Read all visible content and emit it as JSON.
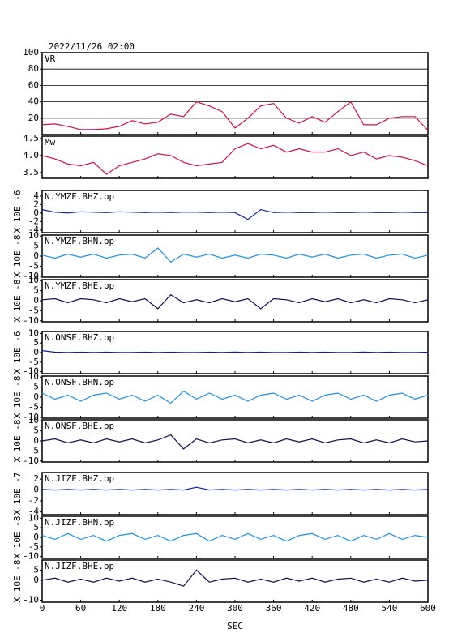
{
  "page_title": "2022/11/26 02:00",
  "chart_data": [
    {
      "type": "line",
      "title": "VR",
      "color": "#d0104a",
      "grid": true,
      "ylim": [
        0,
        100
      ],
      "yticks": [
        20,
        40,
        60,
        80,
        100
      ],
      "x": [
        0,
        20,
        40,
        60,
        80,
        100,
        120,
        140,
        160,
        180,
        200,
        220,
        240,
        260,
        280,
        300,
        320,
        340,
        360,
        380,
        400,
        420,
        440,
        460,
        480,
        500,
        520,
        540,
        560,
        580,
        600
      ],
      "values": [
        12,
        13,
        10,
        6,
        6,
        7,
        10,
        17,
        13,
        15,
        25,
        22,
        40,
        35,
        28,
        8,
        20,
        35,
        38,
        20,
        14,
        22,
        15,
        28,
        40,
        12,
        12,
        20,
        22,
        22,
        5
      ]
    },
    {
      "type": "line",
      "title": "Mw",
      "color": "#d0104a",
      "grid": false,
      "ylim": [
        3.33,
        4.57
      ],
      "yticks": [
        3.5,
        {
          "value": 4,
          "label": "4.0"
        },
        4.5
      ],
      "x": [
        0,
        20,
        40,
        60,
        80,
        100,
        120,
        140,
        160,
        180,
        200,
        220,
        240,
        260,
        280,
        300,
        320,
        340,
        360,
        380,
        400,
        420,
        440,
        460,
        480,
        500,
        520,
        540,
        560,
        580,
        600
      ],
      "values": [
        4.0,
        3.9,
        3.75,
        3.7,
        3.8,
        3.45,
        3.7,
        3.8,
        3.9,
        4.05,
        4.0,
        3.8,
        3.7,
        3.75,
        3.8,
        4.2,
        4.35,
        4.2,
        4.3,
        4.1,
        4.2,
        4.1,
        4.1,
        4.2,
        4.0,
        4.1,
        3.9,
        4.0,
        3.95,
        3.85,
        3.7
      ]
    },
    {
      "type": "line",
      "title": "N.YMZF.BHZ.bp",
      "ylabel": "X 10E -6",
      "color": "#1020a0",
      "grid": false,
      "ylim": [
        -4.6,
        5.3
      ],
      "yticks": [
        -4,
        -2,
        0,
        2,
        4
      ],
      "x": [
        0,
        20,
        40,
        60,
        80,
        100,
        120,
        140,
        160,
        180,
        200,
        220,
        240,
        260,
        280,
        300,
        320,
        340,
        360,
        380,
        400,
        420,
        440,
        460,
        480,
        500,
        520,
        540,
        560,
        580,
        600
      ],
      "values": [
        0.8,
        0.2,
        0,
        0.3,
        0.2,
        0.1,
        0.3,
        0.2,
        0.1,
        0.2,
        0.1,
        0.2,
        0.2,
        0.1,
        0.2,
        0.1,
        -1.5,
        0.8,
        0.1,
        0.2,
        0.1,
        0.1,
        0.2,
        0.1,
        0.1,
        0.2,
        0.1,
        0.1,
        0.2,
        0.1,
        0.1
      ]
    },
    {
      "type": "line",
      "title": "N.YMZF.BHN.bp",
      "ylabel": "X 10E -8",
      "color": "#2090e0",
      "grid": false,
      "ylim": [
        -10.5,
        10.5
      ],
      "yticks": [
        -10,
        -5,
        0,
        5,
        10
      ],
      "x": [
        0,
        20,
        40,
        60,
        80,
        100,
        120,
        140,
        160,
        180,
        200,
        220,
        240,
        260,
        280,
        300,
        320,
        340,
        360,
        380,
        400,
        420,
        440,
        460,
        480,
        500,
        520,
        540,
        560,
        580,
        600
      ],
      "values": [
        0.5,
        -1,
        1,
        -0.5,
        1,
        -1,
        0.5,
        1,
        -1,
        4,
        -3,
        1,
        -0.5,
        1,
        -1,
        0.5,
        -1,
        1,
        0.5,
        -1,
        1,
        -0.5,
        1,
        -1,
        0.5,
        1,
        -1,
        0.5,
        1,
        -1,
        0.5
      ]
    },
    {
      "type": "line",
      "title": "N.YMZF.BHE.bp",
      "ylabel": "X 10E -8",
      "color": "#101050",
      "grid": false,
      "ylim": [
        -10.5,
        10.5
      ],
      "yticks": [
        -10,
        -5,
        0,
        5,
        10
      ],
      "x": [
        0,
        20,
        40,
        60,
        80,
        100,
        120,
        140,
        160,
        180,
        200,
        220,
        240,
        260,
        280,
        300,
        320,
        340,
        360,
        380,
        400,
        420,
        440,
        460,
        480,
        500,
        520,
        540,
        560,
        580,
        600
      ],
      "values": [
        0.5,
        1,
        -1,
        1,
        0.5,
        -1,
        1,
        -0.5,
        1,
        -4,
        3,
        -1,
        0.5,
        -1,
        1,
        -0.5,
        1,
        -4,
        1,
        0.5,
        -1,
        1,
        -0.5,
        1,
        -1,
        0.5,
        -1,
        1,
        0.5,
        -1,
        0.5
      ]
    },
    {
      "type": "line",
      "title": "N.ONSF.BHZ.bp",
      "ylabel": "X 10E -6",
      "color": "#1020a0",
      "grid": false,
      "ylim": [
        -11,
        11
      ],
      "yticks": [
        -10,
        -5,
        0,
        5,
        10
      ],
      "x": [
        0,
        20,
        40,
        60,
        80,
        100,
        120,
        140,
        160,
        180,
        200,
        220,
        240,
        260,
        280,
        300,
        320,
        340,
        360,
        380,
        400,
        420,
        440,
        460,
        480,
        500,
        520,
        540,
        560,
        580,
        600
      ],
      "values": [
        1,
        0.2,
        0.1,
        0.2,
        0.1,
        0.2,
        0.1,
        0.1,
        0.2,
        0.1,
        0.2,
        0.1,
        0.1,
        0.2,
        0.1,
        0.3,
        0.1,
        0.2,
        0.1,
        0.1,
        0.2,
        0.1,
        0.2,
        0.1,
        0.1,
        0.3,
        0.1,
        0.2,
        0.1,
        0.1,
        0.2
      ]
    },
    {
      "type": "line",
      "title": "N.ONSF.BHN.bp",
      "ylabel": "X 10E -8",
      "color": "#2090e0",
      "grid": false,
      "ylim": [
        -10.5,
        10.5
      ],
      "yticks": [
        -10,
        -5,
        0,
        5,
        10
      ],
      "x": [
        0,
        20,
        40,
        60,
        80,
        100,
        120,
        140,
        160,
        180,
        200,
        220,
        240,
        260,
        280,
        300,
        320,
        340,
        360,
        380,
        400,
        420,
        440,
        460,
        480,
        500,
        520,
        540,
        560,
        580,
        600
      ],
      "values": [
        2,
        -1,
        1,
        -2,
        1,
        2,
        -1,
        1,
        -2,
        1,
        -3,
        3,
        -1,
        2,
        -1,
        1,
        -2,
        1,
        2,
        -1,
        1,
        -2,
        1,
        2,
        -1,
        1,
        -2,
        1,
        2,
        -1,
        1
      ]
    },
    {
      "type": "line",
      "title": "N.ONSF.BHE.bp",
      "ylabel": "X 10E -8",
      "color": "#101050",
      "grid": false,
      "ylim": [
        -10.5,
        10.5
      ],
      "yticks": [
        -10,
        -5,
        0,
        5,
        10
      ],
      "x": [
        0,
        20,
        40,
        60,
        80,
        100,
        120,
        140,
        160,
        180,
        200,
        220,
        240,
        260,
        280,
        300,
        320,
        340,
        360,
        380,
        400,
        420,
        440,
        460,
        480,
        500,
        520,
        540,
        560,
        580,
        600
      ],
      "values": [
        0,
        1,
        -1,
        0.5,
        -1,
        1,
        -0.5,
        1,
        -1,
        0.5,
        3,
        -4,
        1,
        -1,
        0.5,
        1,
        -1,
        0.5,
        -1,
        1,
        -0.5,
        1,
        -1,
        0.5,
        1,
        -1,
        0.5,
        -1,
        1,
        -0.5,
        0
      ]
    },
    {
      "type": "line",
      "title": "N.JIZF.BHZ.bp",
      "ylabel": "X 10E -7",
      "color": "#1020a0",
      "grid": false,
      "ylim": [
        -4.5,
        3.2
      ],
      "yticks": [
        -4,
        -2,
        0,
        2
      ],
      "x": [
        0,
        20,
        40,
        60,
        80,
        100,
        120,
        140,
        160,
        180,
        200,
        220,
        240,
        260,
        280,
        300,
        320,
        340,
        360,
        380,
        400,
        420,
        440,
        460,
        480,
        500,
        520,
        540,
        560,
        580,
        600
      ],
      "values": [
        0.1,
        0,
        0.1,
        0,
        0.1,
        0,
        0.1,
        0,
        0.1,
        0,
        0.1,
        0,
        0.5,
        0,
        0.1,
        0,
        0.1,
        0,
        0.1,
        0,
        0.1,
        0,
        0.1,
        0,
        0.1,
        0,
        0.1,
        0,
        0.1,
        0,
        0.1
      ]
    },
    {
      "type": "line",
      "title": "N.JIZF.BHN.bp",
      "ylabel": "X 10E -8",
      "color": "#2090e0",
      "grid": false,
      "ylim": [
        -11,
        11
      ],
      "yticks": [
        -10,
        -5,
        0,
        5,
        10
      ],
      "x": [
        0,
        20,
        40,
        60,
        80,
        100,
        120,
        140,
        160,
        180,
        200,
        220,
        240,
        260,
        280,
        300,
        320,
        340,
        360,
        380,
        400,
        420,
        440,
        460,
        480,
        500,
        520,
        540,
        560,
        580,
        600
      ],
      "values": [
        1,
        -1,
        2,
        -1,
        1,
        -2,
        1,
        2,
        -1,
        1,
        -2,
        1,
        2,
        -2,
        1,
        -1,
        2,
        -1,
        1,
        -2,
        1,
        2,
        -1,
        1,
        -2,
        1,
        -1,
        2,
        -1,
        1,
        0
      ]
    },
    {
      "type": "line",
      "title": "N.JIZF.BHE.bp",
      "ylabel": "X 10E -8",
      "color": "#101050",
      "grid": false,
      "ylim": [
        -11,
        10
      ],
      "yticks": [
        -10,
        0,
        5
      ],
      "xlim": [
        0,
        600
      ],
      "xticks": [
        0,
        60,
        120,
        180,
        240,
        300,
        360,
        420,
        480,
        540,
        600
      ],
      "xlabel": "SEC",
      "x": [
        0,
        20,
        40,
        60,
        80,
        100,
        120,
        140,
        160,
        180,
        200,
        220,
        240,
        260,
        280,
        300,
        320,
        340,
        360,
        380,
        400,
        420,
        440,
        460,
        480,
        500,
        520,
        540,
        560,
        580,
        600
      ],
      "values": [
        0,
        1,
        -1,
        0.5,
        -1,
        1,
        -0.5,
        1,
        -1,
        0.5,
        -1,
        -3,
        5,
        -1,
        0.5,
        1,
        -1,
        0.5,
        -1,
        1,
        -0.5,
        1,
        -1,
        0.5,
        1,
        -1,
        0.5,
        -1,
        1,
        -0.5,
        0
      ]
    }
  ]
}
